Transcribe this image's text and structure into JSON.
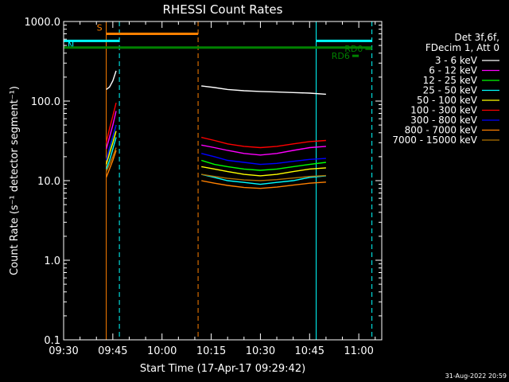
{
  "chart_data": {
    "type": "line",
    "title": "RHESSI Count Rates",
    "xlabel": "Start Time (17-Apr-17 09:29:42)",
    "ylabel": "Count Rate (s⁻¹ detector segment⁻¹)",
    "yscale": "log",
    "ylim": [
      0.1,
      1000.0
    ],
    "y_ticks": [
      0.1,
      1.0,
      10.0,
      100.0,
      1000.0
    ],
    "y_tick_labels": [
      "0.1",
      "1.0",
      "10.0",
      "100.0",
      "1000.0"
    ],
    "xlim": [
      "09:30",
      "11:07"
    ],
    "x_ticks": [
      "09:30",
      "09:45",
      "10:00",
      "10:15",
      "10:30",
      "10:45",
      "11:00"
    ],
    "grid": false,
    "legend_position": "top-right",
    "legend_header": [
      "Det 3f,6f,",
      "FDecim 1, Att 0"
    ],
    "series": [
      {
        "name": "3 - 6 keV",
        "color": "#000000",
        "segments": [
          {
            "x": [
              "09:43",
              "09:44",
              "09:45",
              "09:46"
            ],
            "y": [
              140,
              150,
              180,
              240
            ]
          },
          {
            "x": [
              "10:12",
              "10:16",
              "10:20",
              "10:25",
              "10:30",
              "10:35",
              "10:40",
              "10:45",
              "10:50"
            ],
            "y": [
              155,
              148,
              140,
              135,
              132,
              130,
              128,
              126,
              122
            ]
          }
        ]
      },
      {
        "name": "6 - 12 keV",
        "color": "#ff00ff",
        "segments": [
          {
            "x": [
              "09:43",
              "09:44",
              "09:45",
              "09:46"
            ],
            "y": [
              25,
              35,
              50,
              75
            ]
          },
          {
            "x": [
              "10:12",
              "10:16",
              "10:20",
              "10:25",
              "10:30",
              "10:35",
              "10:40",
              "10:45",
              "10:50"
            ],
            "y": [
              28,
              26,
              24,
              22,
              21,
              22,
              24,
              26,
              27
            ]
          }
        ]
      },
      {
        "name": "12 - 25 keV",
        "color": "#00ff00",
        "segments": [
          {
            "x": [
              "09:43",
              "09:44",
              "09:45",
              "09:46"
            ],
            "y": [
              18,
              25,
              35,
              50
            ]
          },
          {
            "x": [
              "10:12",
              "10:16",
              "10:20",
              "10:25",
              "10:30",
              "10:35",
              "10:40",
              "10:45",
              "10:50"
            ],
            "y": [
              18,
              16,
              15,
              14,
              13.5,
              14,
              15,
              16,
              17
            ]
          }
        ]
      },
      {
        "name": "25 - 50 keV",
        "color": "#00ffff",
        "segments": [
          {
            "x": [
              "09:43",
              "09:44",
              "09:45",
              "09:46"
            ],
            "y": [
              14,
              18,
              25,
              35
            ]
          },
          {
            "x": [
              "10:12",
              "10:16",
              "10:20",
              "10:25",
              "10:30",
              "10:35",
              "10:40",
              "10:45",
              "10:50"
            ],
            "y": [
              12,
              11,
              10,
              9.5,
              9,
              9.5,
              10,
              11,
              11.5
            ]
          }
        ]
      },
      {
        "name": "50 - 100 keV",
        "color": "#ffff00",
        "segments": [
          {
            "x": [
              "09:43",
              "09:44",
              "09:45",
              "09:46"
            ],
            "y": [
              16,
              22,
              30,
              42
            ]
          },
          {
            "x": [
              "10:12",
              "10:16",
              "10:20",
              "10:25",
              "10:30",
              "10:35",
              "10:40",
              "10:45",
              "10:50"
            ],
            "y": [
              15,
              14,
              13,
              12,
              11.5,
              12,
              13,
              14,
              14.5
            ]
          }
        ]
      },
      {
        "name": "100 - 300 keV",
        "color": "#ff0000",
        "segments": [
          {
            "x": [
              "09:43",
              "09:44",
              "09:45",
              "09:46"
            ],
            "y": [
              30,
              45,
              65,
              95
            ]
          },
          {
            "x": [
              "10:12",
              "10:16",
              "10:20",
              "10:25",
              "10:30",
              "10:35",
              "10:40",
              "10:45",
              "10:50"
            ],
            "y": [
              35,
              32,
              29,
              27,
              26,
              27,
              29,
              31,
              32
            ]
          }
        ]
      },
      {
        "name": "300 - 800 keV",
        "color": "#0000ff",
        "segments": [
          {
            "x": [
              "09:43",
              "09:44",
              "09:45",
              "09:46"
            ],
            "y": [
              18,
              26,
              36,
              50
            ]
          },
          {
            "x": [
              "10:12",
              "10:16",
              "10:20",
              "10:25",
              "10:30",
              "10:35",
              "10:40",
              "10:45",
              "10:50"
            ],
            "y": [
              22,
              20,
              18,
              17,
              16,
              16.5,
              17.5,
              18.5,
              19
            ]
          }
        ]
      },
      {
        "name": "800 - 7000 keV",
        "color": "#ff8000",
        "segments": [
          {
            "x": [
              "09:43",
              "09:44",
              "09:45",
              "09:46"
            ],
            "y": [
              11,
              14,
              18,
              24
            ]
          },
          {
            "x": [
              "10:12",
              "10:16",
              "10:20",
              "10:25",
              "10:30",
              "10:35",
              "10:40",
              "10:45",
              "10:50"
            ],
            "y": [
              10,
              9.3,
              8.7,
              8.2,
              8,
              8.3,
              8.8,
              9.3,
              9.6
            ]
          }
        ]
      },
      {
        "name": "7000 - 15000 keV",
        "color": "#b07000",
        "segments": [
          {
            "x": [
              "09:43",
              "09:44",
              "09:45",
              "09:46"
            ],
            "y": [
              13,
              16,
              20,
              26
            ]
          },
          {
            "x": [
              "10:12",
              "10:16",
              "10:20",
              "10:25",
              "10:30",
              "10:35",
              "10:40",
              "10:45",
              "10:50"
            ],
            "y": [
              12,
              11.3,
              10.7,
              10.2,
              10,
              10.3,
              10.8,
              11.3,
              11.6
            ]
          }
        ]
      }
    ],
    "bars": [
      {
        "label": "S",
        "color": "#ff8000",
        "x": [
          "09:43",
          "10:11"
        ],
        "y": 700
      },
      {
        "label": "N",
        "color": "#00ffff",
        "x": [
          "09:30",
          "09:47"
        ],
        "y": 570
      },
      {
        "label": "",
        "color": "#00ffff",
        "x": [
          "10:47",
          "11:04"
        ],
        "y": 570
      },
      {
        "label": "",
        "color": "#008000",
        "x": [
          "09:30",
          "11:04"
        ],
        "y": 470
      },
      {
        "label": "RD0",
        "color": "#008000",
        "x": [
          "11:02",
          "11:04"
        ],
        "y": 455
      },
      {
        "label": "RD6",
        "color": "#008000",
        "x": [
          "10:58",
          "11:00"
        ],
        "y": 370
      }
    ],
    "vlines": [
      {
        "x": "09:30",
        "color": "#00ffff",
        "style": "solid"
      },
      {
        "x": "09:43",
        "color": "#ff8000",
        "style": "solid"
      },
      {
        "x": "09:47",
        "color": "#00ffff",
        "style": "dashed"
      },
      {
        "x": "10:11",
        "color": "#ff8000",
        "style": "dashed"
      },
      {
        "x": "10:47",
        "color": "#00ffff",
        "style": "solid"
      },
      {
        "x": "11:04",
        "color": "#00ffff",
        "style": "dashed"
      }
    ],
    "footer": "31-Aug-2022 20:59"
  }
}
